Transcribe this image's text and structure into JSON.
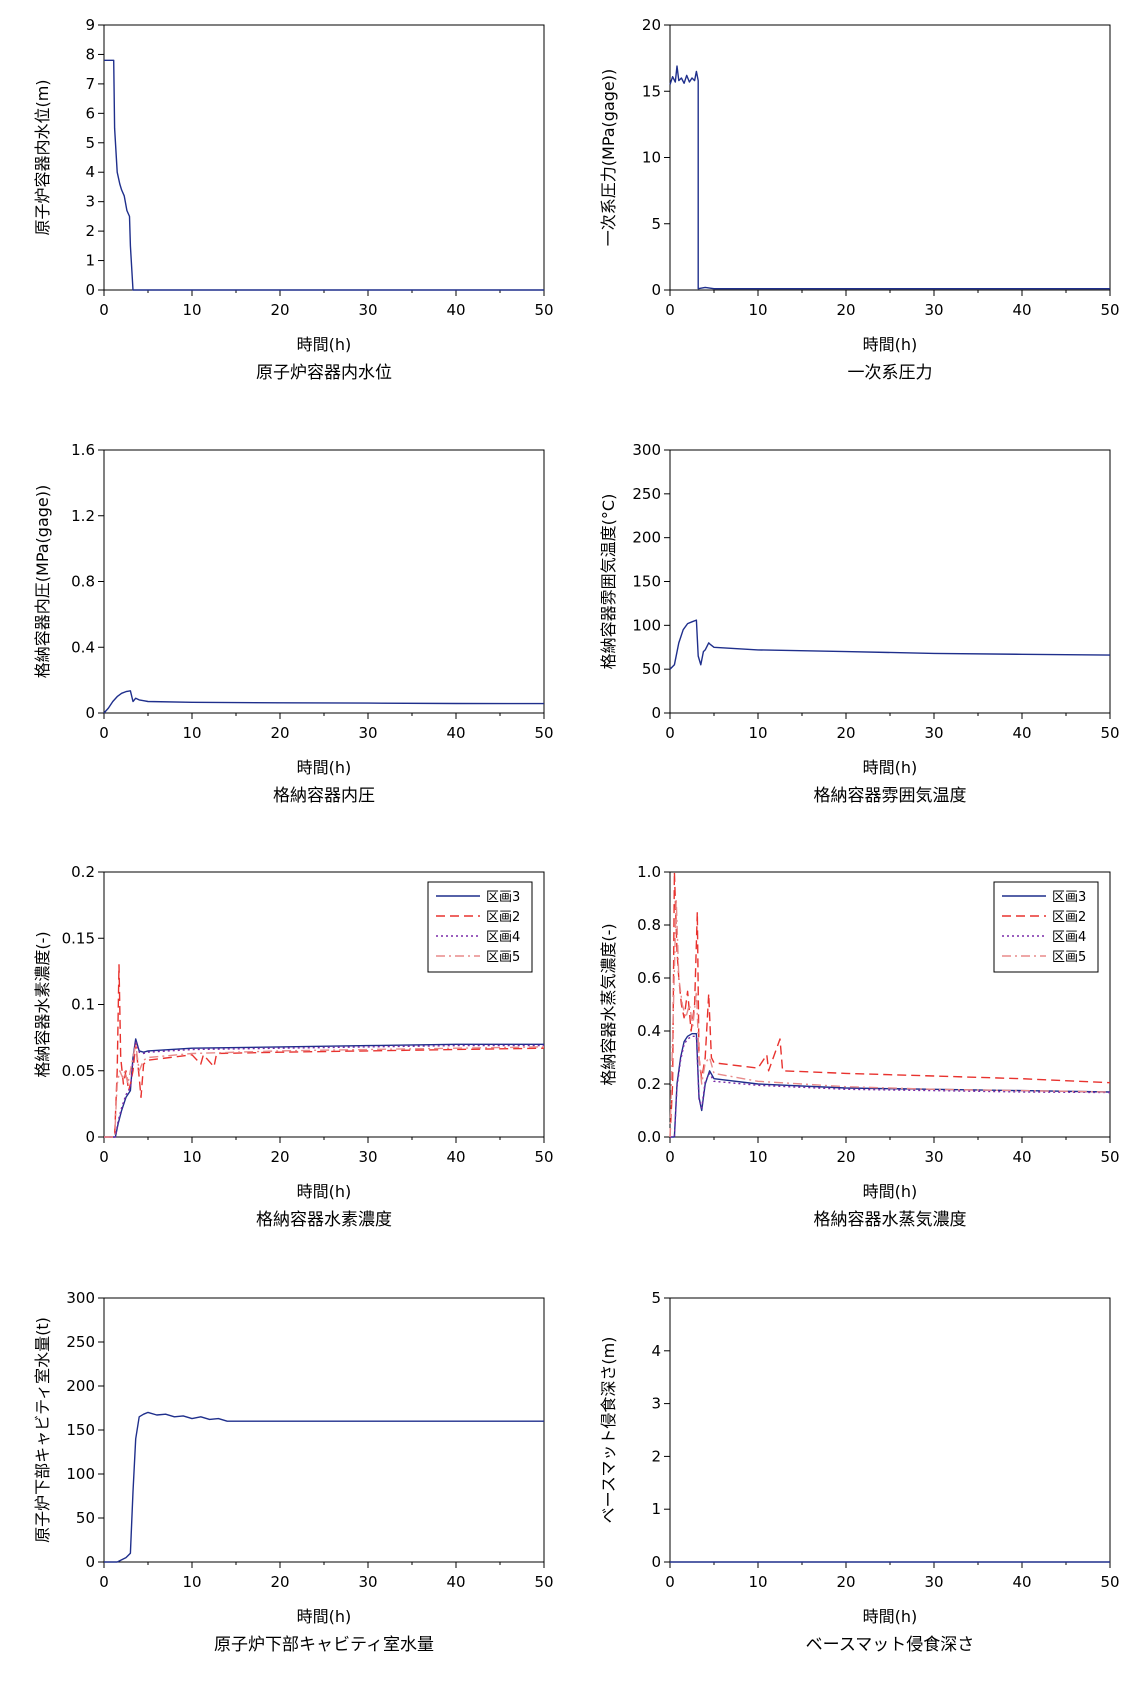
{
  "colors": {
    "axis": "#000000",
    "series_blue": "#1f2f8c",
    "series_red": "#e8322e",
    "series_purple": "#7a2aa8",
    "series_pink": "#e88a8a"
  },
  "chart_data": [
    {
      "type": "line",
      "title": "原子炉容器内水位",
      "xlabel": "時間(h)",
      "ylabel": "原子炉容器内水位(m)",
      "xlim": [
        0,
        50
      ],
      "ylim": [
        0,
        9
      ],
      "xticks": [
        0,
        10,
        20,
        30,
        40,
        50
      ],
      "yticks": [
        0,
        1,
        2,
        3,
        4,
        5,
        6,
        7,
        8,
        9
      ],
      "grid": false,
      "series": [
        {
          "style": "solid",
          "color": "#1f2f8c",
          "x": [
            0,
            0.2,
            1.1,
            1.2,
            1.5,
            1.8,
            2.0,
            2.3,
            2.6,
            2.9,
            3.0,
            3.3,
            4,
            10,
            20,
            30,
            40,
            50
          ],
          "y": [
            7.8,
            7.8,
            7.8,
            5.5,
            4.0,
            3.6,
            3.4,
            3.2,
            2.7,
            2.5,
            1.5,
            0,
            0,
            0,
            0,
            0,
            0,
            0
          ]
        }
      ]
    },
    {
      "type": "line",
      "title": "一次系圧力",
      "xlabel": "時間(h)",
      "ylabel": "一次系圧力(MPa(gage))",
      "xlim": [
        0,
        50
      ],
      "ylim": [
        0,
        20
      ],
      "xticks": [
        0,
        10,
        20,
        30,
        40,
        50
      ],
      "yticks": [
        0,
        5,
        10,
        15,
        20
      ],
      "grid": false,
      "series": [
        {
          "style": "solid",
          "color": "#1f2f8c",
          "x": [
            0,
            0.3,
            0.6,
            0.8,
            1.0,
            1.3,
            1.6,
            1.9,
            2.2,
            2.5,
            2.8,
            3.0,
            3.2,
            3.2,
            4,
            5,
            10,
            20,
            30,
            40,
            50
          ],
          "y": [
            15.5,
            16.1,
            15.7,
            16.9,
            15.8,
            16.0,
            15.6,
            16.2,
            15.7,
            16.0,
            15.8,
            16.5,
            15.8,
            0.1,
            0.2,
            0.1,
            0.1,
            0.1,
            0.1,
            0.1,
            0.1
          ]
        }
      ]
    },
    {
      "type": "line",
      "title": "格納容器内圧",
      "xlabel": "時間(h)",
      "ylabel": "格納容器内圧(MPa(gage))",
      "xlim": [
        0,
        50
      ],
      "ylim": [
        0,
        1.6
      ],
      "xticks": [
        0,
        10,
        20,
        30,
        40,
        50
      ],
      "yticks": [
        0,
        0.4,
        0.8,
        1.2,
        1.6
      ],
      "grid": false,
      "series": [
        {
          "style": "solid",
          "color": "#1f2f8c",
          "x": [
            0,
            0.5,
            1.0,
            1.5,
            2.0,
            2.5,
            3.0,
            3.3,
            3.6,
            4.0,
            4.5,
            5,
            10,
            20,
            30,
            40,
            50
          ],
          "y": [
            0,
            0.03,
            0.07,
            0.1,
            0.12,
            0.13,
            0.135,
            0.07,
            0.09,
            0.08,
            0.075,
            0.07,
            0.065,
            0.062,
            0.06,
            0.058,
            0.057
          ]
        }
      ]
    },
    {
      "type": "line",
      "title": "格納容器雰囲気温度",
      "xlabel": "時間(h)",
      "ylabel": "格納容器雰囲気温度(°C)",
      "xlim": [
        0,
        50
      ],
      "ylim": [
        0,
        300
      ],
      "xticks": [
        0,
        10,
        20,
        30,
        40,
        50
      ],
      "yticks": [
        0,
        50,
        100,
        150,
        200,
        250,
        300
      ],
      "grid": false,
      "series": [
        {
          "style": "solid",
          "color": "#1f2f8c",
          "x": [
            0,
            0.5,
            1.0,
            1.5,
            2.0,
            2.5,
            3.0,
            3.2,
            3.5,
            3.8,
            4.0,
            4.4,
            4.6,
            5,
            10,
            20,
            30,
            40,
            50
          ],
          "y": [
            50,
            55,
            80,
            95,
            102,
            104,
            106,
            65,
            55,
            70,
            72,
            80,
            78,
            75,
            72,
            70,
            68,
            67,
            66
          ]
        }
      ]
    },
    {
      "type": "line",
      "title": "格納容器水素濃度",
      "xlabel": "時間(h)",
      "ylabel": "格納容器水素濃度(-)",
      "xlim": [
        0,
        50
      ],
      "ylim": [
        0,
        0.2
      ],
      "xticks": [
        0,
        10,
        20,
        30,
        40,
        50
      ],
      "yticks": [
        0,
        0.05,
        0.1,
        0.15,
        0.2
      ],
      "ytick_labels": [
        "0",
        "0.05",
        "0.1",
        "0.15",
        "0.2"
      ],
      "grid": false,
      "legend": "top-right",
      "series": [
        {
          "name": "区画3",
          "style": "solid",
          "color": "#1f2f8c",
          "x": [
            0,
            1.3,
            1.6,
            2.0,
            2.5,
            3.0,
            3.3,
            3.6,
            4.0,
            4.5,
            5,
            10,
            20,
            30,
            40,
            50
          ],
          "y": [
            0,
            0,
            0.01,
            0.02,
            0.03,
            0.035,
            0.06,
            0.074,
            0.065,
            0.064,
            0.065,
            0.067,
            0.068,
            0.069,
            0.07,
            0.07
          ]
        },
        {
          "name": "区画2",
          "style": "dashed",
          "color": "#e8322e",
          "x": [
            0,
            1.2,
            1.5,
            1.7,
            1.9,
            2.2,
            2.5,
            2.8,
            3.0,
            3.3,
            3.6,
            4.0,
            4.2,
            4.5,
            5,
            10,
            11,
            11.3,
            12.5,
            12.8,
            20,
            30,
            40,
            50
          ],
          "y": [
            0,
            0,
            0.05,
            0.13,
            0.06,
            0.04,
            0.05,
            0.035,
            0.04,
            0.05,
            0.07,
            0.045,
            0.03,
            0.055,
            0.058,
            0.062,
            0.055,
            0.062,
            0.053,
            0.063,
            0.064,
            0.065,
            0.066,
            0.067
          ]
        },
        {
          "name": "区画4",
          "style": "dotted",
          "color": "#7a2aa8",
          "x": [
            0,
            1.3,
            1.6,
            2.0,
            2.5,
            3.0,
            3.3,
            3.6,
            4.0,
            4.5,
            5,
            10,
            20,
            30,
            40,
            50
          ],
          "y": [
            0,
            0,
            0.012,
            0.022,
            0.032,
            0.037,
            0.058,
            0.072,
            0.064,
            0.063,
            0.064,
            0.066,
            0.067,
            0.068,
            0.069,
            0.069
          ]
        },
        {
          "name": "区画5",
          "style": "dashdot",
          "color": "#e88a8a",
          "x": [
            0,
            1.2,
            1.5,
            1.8,
            2.1,
            2.4,
            2.7,
            3.0,
            3.3,
            3.6,
            4.0,
            4.5,
            5,
            10,
            20,
            30,
            40,
            50
          ],
          "y": [
            0,
            0,
            0.04,
            0.05,
            0.045,
            0.05,
            0.04,
            0.05,
            0.06,
            0.07,
            0.05,
            0.058,
            0.06,
            0.063,
            0.065,
            0.066,
            0.067,
            0.068
          ]
        }
      ]
    },
    {
      "type": "line",
      "title": "格納容器水蒸気濃度",
      "xlabel": "時間(h)",
      "ylabel": "格納容器水蒸気濃度(-)",
      "xlim": [
        0,
        50
      ],
      "ylim": [
        0,
        1.0
      ],
      "xticks": [
        0,
        10,
        20,
        30,
        40,
        50
      ],
      "yticks": [
        0,
        0.2,
        0.4,
        0.6,
        0.8,
        1.0
      ],
      "ytick_labels": [
        "0.0",
        "0.2",
        "0.4",
        "0.6",
        "0.8",
        "1.0"
      ],
      "grid": false,
      "legend": "top-right",
      "series": [
        {
          "name": "区画3",
          "style": "solid",
          "color": "#1f2f8c",
          "x": [
            0,
            0.5,
            0.8,
            1.2,
            1.6,
            2.0,
            2.5,
            3.0,
            3.3,
            3.6,
            4.0,
            4.5,
            5,
            10,
            20,
            30,
            40,
            50
          ],
          "y": [
            0,
            0,
            0.2,
            0.3,
            0.36,
            0.38,
            0.39,
            0.39,
            0.15,
            0.1,
            0.2,
            0.25,
            0.22,
            0.2,
            0.185,
            0.18,
            0.175,
            0.17
          ]
        },
        {
          "name": "区画2",
          "style": "dashed",
          "color": "#e8322e",
          "x": [
            0,
            0.3,
            0.5,
            0.8,
            1.0,
            1.3,
            1.6,
            2.0,
            2.4,
            2.8,
            3.1,
            3.3,
            3.6,
            4.0,
            4.4,
            4.7,
            5,
            10,
            11,
            11.2,
            12.5,
            12.8,
            20,
            30,
            40,
            50
          ],
          "y": [
            0,
            0.2,
            1.0,
            0.7,
            0.6,
            0.5,
            0.45,
            0.55,
            0.4,
            0.5,
            0.85,
            0.3,
            0.22,
            0.3,
            0.54,
            0.3,
            0.28,
            0.26,
            0.31,
            0.25,
            0.37,
            0.25,
            0.24,
            0.23,
            0.22,
            0.205
          ]
        },
        {
          "name": "区画4",
          "style": "dotted",
          "color": "#7a2aa8",
          "x": [
            0,
            0.5,
            0.8,
            1.2,
            1.6,
            2.0,
            2.5,
            3.0,
            3.3,
            3.6,
            4.0,
            4.5,
            5,
            10,
            20,
            30,
            40,
            50
          ],
          "y": [
            0,
            0,
            0.19,
            0.29,
            0.35,
            0.37,
            0.38,
            0.38,
            0.14,
            0.11,
            0.21,
            0.24,
            0.21,
            0.195,
            0.18,
            0.175,
            0.17,
            0.168
          ]
        },
        {
          "name": "区画5",
          "style": "dashdot",
          "color": "#e88a8a",
          "x": [
            0,
            0.4,
            0.7,
            1.0,
            1.4,
            1.8,
            2.2,
            2.6,
            3.0,
            3.3,
            3.6,
            4.0,
            4.5,
            5,
            10,
            20,
            30,
            40,
            50
          ],
          "y": [
            0,
            0.5,
            0.9,
            0.6,
            0.5,
            0.45,
            0.5,
            0.42,
            0.55,
            0.3,
            0.2,
            0.28,
            0.3,
            0.24,
            0.21,
            0.19,
            0.18,
            0.175,
            0.17
          ]
        }
      ]
    },
    {
      "type": "line",
      "title": "原子炉下部キャビティ室水量",
      "xlabel": "時間(h)",
      "ylabel": "原子炉下部キャビティ室水量(t)",
      "xlim": [
        0,
        50
      ],
      "ylim": [
        0,
        300
      ],
      "xticks": [
        0,
        10,
        20,
        30,
        40,
        50
      ],
      "yticks": [
        0,
        50,
        100,
        150,
        200,
        250,
        300
      ],
      "grid": false,
      "series": [
        {
          "style": "solid",
          "color": "#1f2f8c",
          "x": [
            0,
            1.5,
            2.5,
            3.0,
            3.3,
            3.6,
            4.0,
            4.5,
            5.0,
            6,
            7,
            8,
            9,
            10,
            11,
            12,
            13,
            14,
            20,
            30,
            40,
            50
          ],
          "y": [
            0,
            0,
            5,
            10,
            80,
            140,
            165,
            168,
            170,
            167,
            168,
            165,
            166,
            163,
            165,
            162,
            163,
            160,
            160,
            160,
            160,
            160
          ]
        }
      ]
    },
    {
      "type": "line",
      "title": "ベースマット侵食深さ",
      "xlabel": "時間(h)",
      "ylabel": "ベースマット侵食深さ(m)",
      "xlim": [
        0,
        50
      ],
      "ylim": [
        0,
        5
      ],
      "xticks": [
        0,
        10,
        20,
        30,
        40,
        50
      ],
      "yticks": [
        0,
        1,
        2,
        3,
        4,
        5
      ],
      "grid": false,
      "series": [
        {
          "style": "solid",
          "color": "#1f2f8c",
          "x": [
            0,
            10,
            20,
            30,
            40,
            50
          ],
          "y": [
            0,
            0,
            0,
            0,
            0,
            0
          ]
        }
      ]
    }
  ]
}
